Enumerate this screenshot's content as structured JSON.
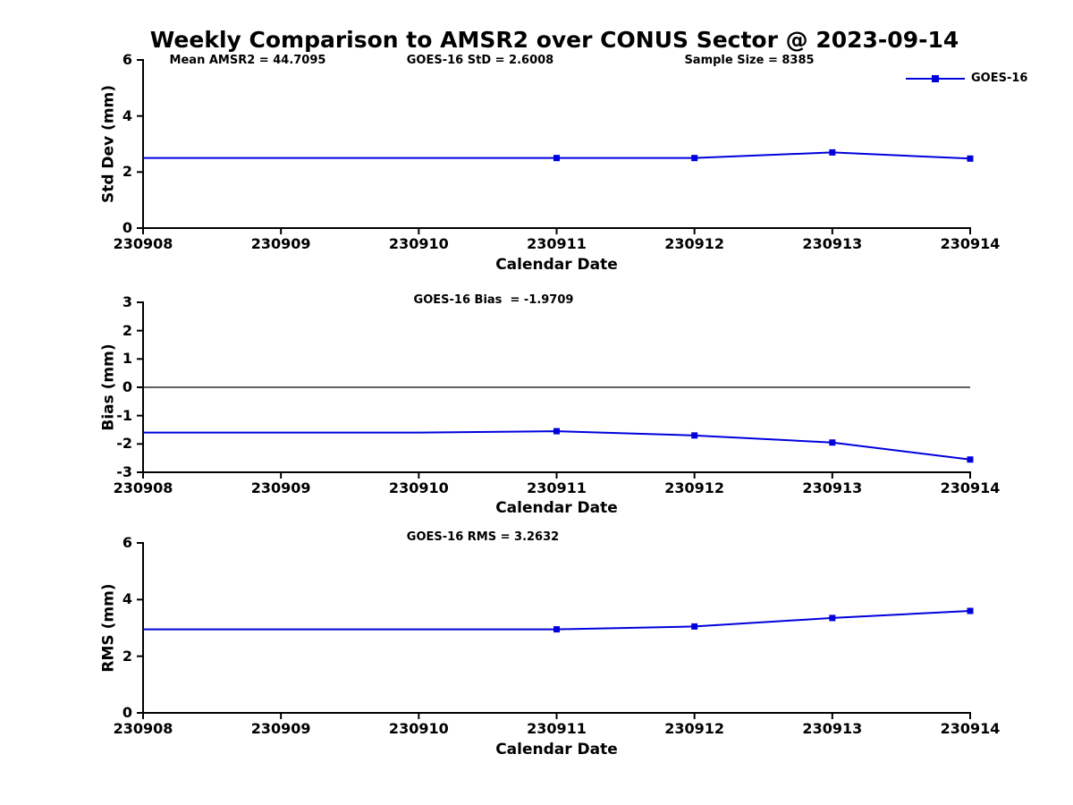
{
  "title": "Weekly Comparison to AMSR2 over CONUS Sector @ 2023-09-14",
  "legend": {
    "label": "GOES-16"
  },
  "chart_data": [
    {
      "type": "line",
      "panel": "std-dev",
      "annotations": [
        "Mean AMSR2 = 44.7095",
        "GOES-16 StD = 2.6008",
        "Sample Size = 8385"
      ],
      "xlabel": "Calendar Date",
      "ylabel": "Std Dev (mm)",
      "x_ticklabels": [
        "230908",
        "230909",
        "230910",
        "230911",
        "230912",
        "230913",
        "230914"
      ],
      "yticks": [
        0,
        2,
        4,
        6
      ],
      "ylim": [
        0,
        6
      ],
      "grid": false,
      "series": [
        {
          "name": "GOES-16",
          "color": "#0000DD",
          "values": [
            2.5,
            2.5,
            2.5,
            2.5,
            2.5,
            2.7,
            2.48
          ],
          "marker": "square",
          "marker_indices": [
            3,
            4,
            5,
            6
          ]
        }
      ]
    },
    {
      "type": "line",
      "panel": "bias",
      "annotations": [
        "GOES-16 Bias  = -1.9709"
      ],
      "xlabel": "Calendar Date",
      "ylabel": "Bias (mm)",
      "x_ticklabels": [
        "230908",
        "230909",
        "230910",
        "230911",
        "230912",
        "230913",
        "230914"
      ],
      "yticks": [
        -3,
        -2,
        -1,
        0,
        1,
        2,
        3
      ],
      "ylim": [
        -3,
        3
      ],
      "zero_line": true,
      "grid": false,
      "series": [
        {
          "name": "GOES-16",
          "color": "#0000DD",
          "values": [
            -1.6,
            -1.6,
            -1.6,
            -1.55,
            -1.7,
            -1.95,
            -2.55
          ],
          "marker": "square",
          "marker_indices": [
            3,
            4,
            5,
            6
          ]
        }
      ]
    },
    {
      "type": "line",
      "panel": "rms",
      "annotations": [
        "GOES-16 RMS = 3.2632"
      ],
      "xlabel": "Calendar Date",
      "ylabel": "RMS (mm)",
      "x_ticklabels": [
        "230908",
        "230909",
        "230910",
        "230911",
        "230912",
        "230913",
        "230914"
      ],
      "yticks": [
        0,
        2,
        4,
        6
      ],
      "ylim": [
        0,
        6
      ],
      "grid": false,
      "series": [
        {
          "name": "GOES-16",
          "color": "#0000DD",
          "values": [
            2.95,
            2.95,
            2.95,
            2.95,
            3.05,
            3.35,
            3.6
          ],
          "marker": "square",
          "marker_indices": [
            3,
            4,
            5,
            6
          ]
        }
      ]
    }
  ]
}
